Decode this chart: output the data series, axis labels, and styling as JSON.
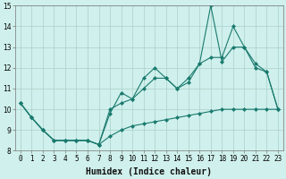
{
  "title": "",
  "xlabel": "Humidex (Indice chaleur)",
  "ylabel": "",
  "x": [
    0,
    1,
    2,
    3,
    4,
    5,
    6,
    7,
    8,
    9,
    10,
    11,
    12,
    13,
    14,
    15,
    16,
    17,
    18,
    19,
    20,
    21,
    22,
    23
  ],
  "line1": [
    10.3,
    9.6,
    9.0,
    8.5,
    8.5,
    8.5,
    8.5,
    8.3,
    9.8,
    10.8,
    10.5,
    11.5,
    12.0,
    11.5,
    11.0,
    11.3,
    12.2,
    15.0,
    12.3,
    13.0,
    13.0,
    12.0,
    11.8,
    10.0
  ],
  "line2": [
    10.3,
    9.6,
    9.0,
    8.5,
    8.5,
    8.5,
    8.5,
    8.3,
    10.0,
    10.3,
    10.5,
    11.0,
    11.5,
    11.5,
    11.0,
    11.5,
    12.2,
    12.5,
    12.5,
    14.0,
    13.0,
    12.2,
    11.8,
    10.0
  ],
  "line3": [
    10.3,
    9.6,
    9.0,
    8.5,
    8.5,
    8.5,
    8.5,
    8.3,
    8.7,
    9.0,
    9.2,
    9.3,
    9.4,
    9.5,
    9.6,
    9.7,
    9.8,
    9.9,
    10.0,
    10.0,
    10.0,
    10.0,
    10.0,
    10.0
  ],
  "line_color": "#1a7a6e",
  "bg_color": "#cff0ec",
  "grid_color_major": "#aacfca",
  "grid_color_minor": "#c5e8e4",
  "ylim": [
    8,
    15
  ],
  "xlim_min": -0.5,
  "xlim_max": 23.5,
  "yticks": [
    8,
    9,
    10,
    11,
    12,
    13,
    14,
    15
  ],
  "xticks": [
    0,
    1,
    2,
    3,
    4,
    5,
    6,
    7,
    8,
    9,
    10,
    11,
    12,
    13,
    14,
    15,
    16,
    17,
    18,
    19,
    20,
    21,
    22,
    23
  ],
  "xlabel_fontsize": 7,
  "tick_fontsize": 5.5
}
